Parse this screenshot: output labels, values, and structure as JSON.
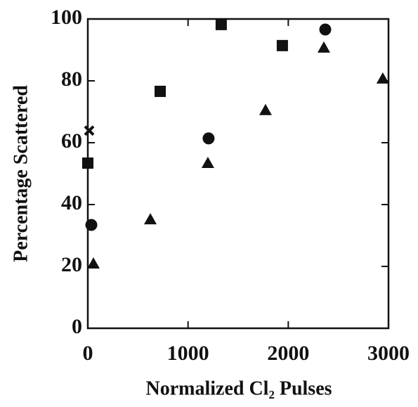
{
  "chart_data": {
    "type": "scatter",
    "xlabel": "Normalized Cl₂ Pulses",
    "ylabel": "Percentage Scattered",
    "xlim": [
      0,
      3000
    ],
    "xticks": [
      0,
      1000,
      2000,
      3000
    ],
    "ylim": [
      0,
      100
    ],
    "yticks": [
      0,
      20,
      40,
      60,
      80,
      100
    ],
    "series": [
      {
        "marker": "square",
        "color": "#111111",
        "x": [
          0,
          722,
          1331,
          1941
        ],
        "values": [
          53.4,
          76.6,
          98.2,
          91.4
        ]
      },
      {
        "marker": "circle",
        "color": "#111111",
        "x": [
          35,
          1205,
          2369
        ],
        "values": [
          33.4,
          61.4,
          96.6
        ]
      },
      {
        "marker": "triangle",
        "color": "#111111",
        "x": [
          56,
          624,
          1198,
          1773,
          2355,
          2943
        ],
        "values": [
          20.9,
          35.2,
          53.4,
          70.5,
          90.7,
          80.7
        ]
      },
      {
        "marker": "cross",
        "color": "#111111",
        "x": [
          14
        ],
        "values": [
          63.9
        ]
      }
    ]
  }
}
